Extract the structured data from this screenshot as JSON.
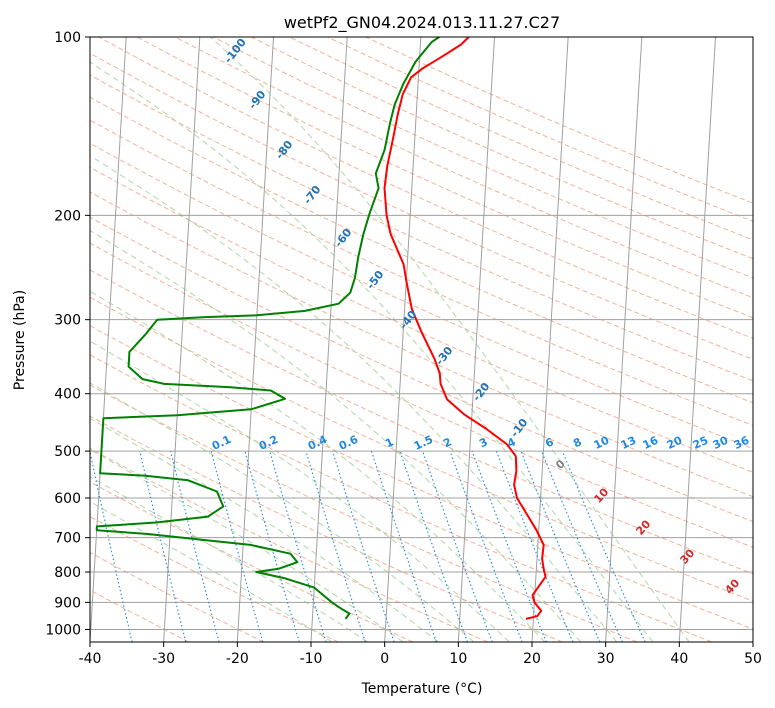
{
  "chart_data": {
    "type": "line",
    "title": "wetPf2_GN04.2024.013.11.27.C27",
    "xlabel": "Temperature (°C)",
    "ylabel": "Pressure (hPa)",
    "xlim": [
      -40,
      50
    ],
    "ylim": [
      1050,
      100
    ],
    "yscale": "log",
    "xticks": [
      -40,
      -30,
      -20,
      -10,
      0,
      10,
      20,
      30,
      40,
      50
    ],
    "yticks": [
      100,
      200,
      300,
      400,
      500,
      600,
      700,
      800,
      900,
      1000
    ],
    "grid": true,
    "colors": {
      "temperature": "#ff0000",
      "dewpoint": "#008000",
      "isotherms": "#a0a0a0",
      "dry_adiabats": "#f4a582",
      "moist_adiabats": "#a6d4a0",
      "mixing_ratio": "#1e88e5",
      "mixing_ratio_label": "#1e88e5",
      "dry_label": "#2171b5",
      "moist_label": "#d62728",
      "lcl_label": "#808080"
    },
    "series": [
      {
        "key": "temperature",
        "points": [
          [
            19.0,
            960
          ],
          [
            20.5,
            950
          ],
          [
            21.0,
            930
          ],
          [
            20.0,
            900
          ],
          [
            19.7,
            875
          ],
          [
            20.5,
            845
          ],
          [
            21.3,
            815
          ],
          [
            21.0,
            790
          ],
          [
            20.7,
            760
          ],
          [
            20.8,
            720
          ],
          [
            19.7,
            680
          ],
          [
            18.3,
            640
          ],
          [
            16.8,
            600
          ],
          [
            16.3,
            570
          ],
          [
            16.5,
            540
          ],
          [
            16.3,
            510
          ],
          [
            15.0,
            487
          ],
          [
            12.0,
            458
          ],
          [
            9.0,
            434
          ],
          [
            6.5,
            409
          ],
          [
            5.5,
            385
          ],
          [
            5.3,
            370
          ],
          [
            4.5,
            350
          ],
          [
            2.5,
            315
          ],
          [
            1.0,
            288
          ],
          [
            0.0,
            258
          ],
          [
            -0.5,
            242
          ],
          [
            -2.5,
            215
          ],
          [
            -3.2,
            200
          ],
          [
            -3.7,
            180
          ],
          [
            -3.5,
            165
          ],
          [
            -3.0,
            150
          ],
          [
            -2.5,
            135
          ],
          [
            -2.0,
            125
          ],
          [
            -1.0,
            117
          ],
          [
            0.5,
            113
          ],
          [
            2.5,
            109
          ],
          [
            4.0,
            106
          ],
          [
            5.5,
            103
          ],
          [
            6.5,
            100
          ]
        ]
      },
      {
        "key": "dewpoint",
        "points": [
          [
            -5.5,
            960
          ],
          [
            -5.0,
            940
          ],
          [
            -6.0,
            925
          ],
          [
            -7.5,
            900
          ],
          [
            -10.0,
            850
          ],
          [
            -14.0,
            820
          ],
          [
            -18.0,
            800
          ],
          [
            -15.0,
            790
          ],
          [
            -12.5,
            770
          ],
          [
            -13.5,
            745
          ],
          [
            -19.0,
            720
          ],
          [
            -26.0,
            705
          ],
          [
            -33.0,
            690
          ],
          [
            -40.0,
            680
          ],
          [
            -40.0,
            670
          ],
          [
            -32.0,
            660
          ],
          [
            -25.0,
            645
          ],
          [
            -23.0,
            620
          ],
          [
            -24.0,
            585
          ],
          [
            -28.0,
            560
          ],
          [
            -34.0,
            550
          ],
          [
            -40.0,
            545
          ],
          [
            -40.0,
            440
          ],
          [
            -30.0,
            435
          ],
          [
            -20.0,
            425
          ],
          [
            -15.5,
            408
          ],
          [
            -17.5,
            395
          ],
          [
            -23.0,
            390
          ],
          [
            -32.0,
            385
          ],
          [
            -35.0,
            378
          ],
          [
            -37.0,
            360
          ],
          [
            -37.0,
            340
          ],
          [
            -35.0,
            318
          ],
          [
            -33.5,
            300
          ],
          [
            -27.0,
            297
          ],
          [
            -20.0,
            295
          ],
          [
            -13.5,
            290
          ],
          [
            -9.0,
            282
          ],
          [
            -7.5,
            270
          ],
          [
            -7.0,
            255
          ],
          [
            -6.7,
            235
          ],
          [
            -6.2,
            215
          ],
          [
            -5.5,
            198
          ],
          [
            -4.5,
            180
          ],
          [
            -5.0,
            170
          ],
          [
            -4.0,
            155
          ],
          [
            -3.5,
            140
          ],
          [
            -3.0,
            130
          ],
          [
            -2.0,
            120
          ],
          [
            -0.5,
            110
          ],
          [
            1.5,
            102
          ],
          [
            2.5,
            100
          ]
        ]
      }
    ],
    "dry_adiabat_labels": [
      "-100",
      "-90",
      "-80",
      "-70",
      "-60",
      "-50",
      "-40",
      "-30",
      "-20",
      "-10"
    ],
    "moist_adiabat_labels": [
      "10",
      "20",
      "30",
      "40"
    ],
    "mixing_ratio_labels": [
      "0.1",
      "0.2",
      "0.4",
      "0.6",
      "1",
      "1.5",
      "2",
      "3",
      "4",
      "6",
      "8",
      "10",
      "13",
      "16",
      "20",
      "25",
      "30",
      "36"
    ],
    "lcl_marker_label": "0"
  }
}
